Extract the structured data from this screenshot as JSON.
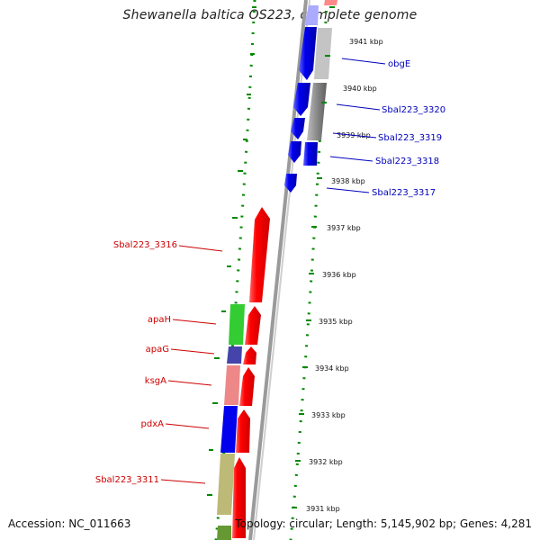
{
  "title": "Shewanella baltica OS223, complete genome",
  "footer": {
    "accession": "Accession: NC_011663",
    "summary": "Topology: circular; Length: 5,145,902 bp; Genes: 4,281"
  },
  "scale": {
    "unit": "kbp",
    "ticks": [
      "3941 kbp",
      "3940 kbp",
      "3939 kbp",
      "3938 kbp",
      "3937 kbp",
      "3936 kbp",
      "3935 kbp",
      "3934 kbp",
      "3933 kbp",
      "3932 kbp",
      "3931 kbp"
    ]
  },
  "genes_reverse": [
    "Sbal223_3316",
    "apaH",
    "apaG",
    "ksgA",
    "pdxA",
    "Sbal223_3311"
  ],
  "genes_forward": [
    "obgE",
    "Sbal223_3320",
    "Sbal223_3319",
    "Sbal223_3318",
    "Sbal223_3317"
  ],
  "colors": {
    "forward_cds": "#0000ee",
    "reverse_cds": "#ff0000",
    "backbone": "#999999",
    "gc_skew_dots": "#008800",
    "label_forward": "#0000bb",
    "label_reverse": "#cc0000"
  }
}
